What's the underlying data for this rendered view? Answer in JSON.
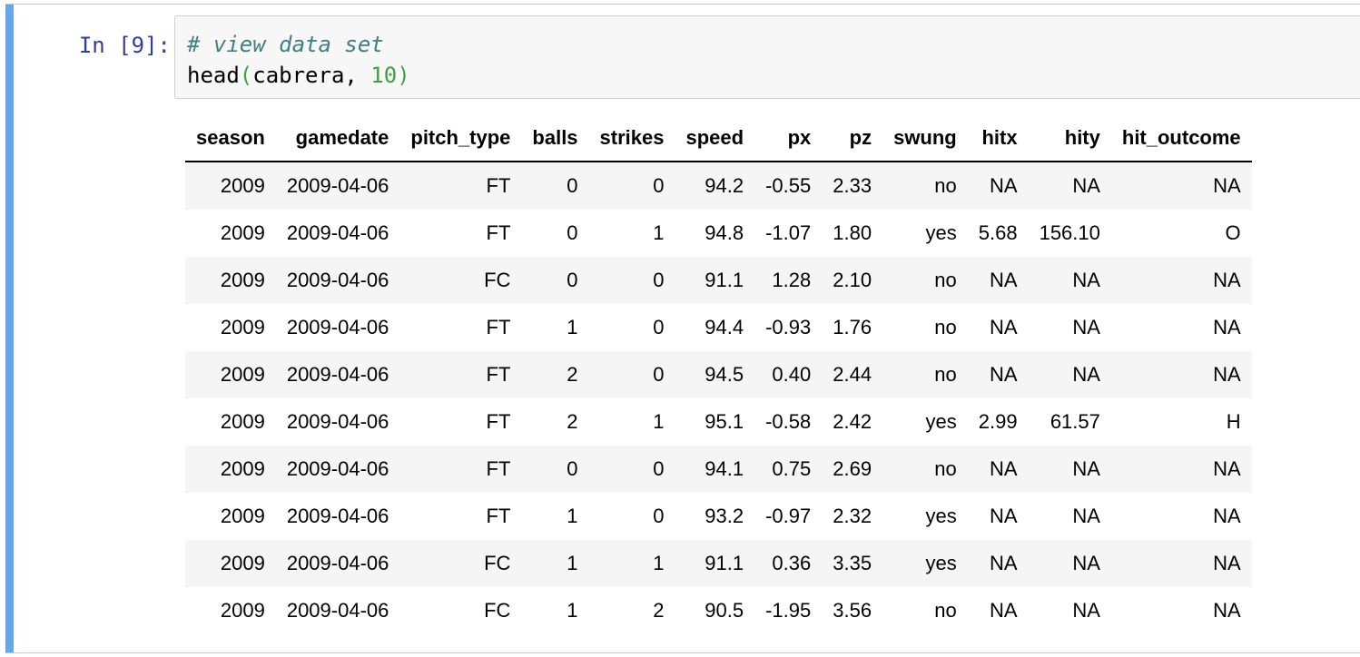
{
  "prompt": "In [9]:",
  "code": {
    "comment": "# view data set",
    "func": "head",
    "open_paren": "(",
    "args_text": "cabrera, ",
    "arg_num": "10",
    "close_paren": ")"
  },
  "table": {
    "columns": [
      "season",
      "gamedate",
      "pitch_type",
      "balls",
      "strikes",
      "speed",
      "px",
      "pz",
      "swung",
      "hitx",
      "hity",
      "hit_outcome"
    ],
    "rows": [
      [
        "2009",
        "2009-04-06",
        "FT",
        "0",
        "0",
        "94.2",
        "-0.55",
        "2.33",
        "no",
        "NA",
        "NA",
        "NA"
      ],
      [
        "2009",
        "2009-04-06",
        "FT",
        "0",
        "1",
        "94.8",
        "-1.07",
        "1.80",
        "yes",
        "5.68",
        "156.10",
        "O"
      ],
      [
        "2009",
        "2009-04-06",
        "FC",
        "0",
        "0",
        "91.1",
        "1.28",
        "2.10",
        "no",
        "NA",
        "NA",
        "NA"
      ],
      [
        "2009",
        "2009-04-06",
        "FT",
        "1",
        "0",
        "94.4",
        "-0.93",
        "1.76",
        "no",
        "NA",
        "NA",
        "NA"
      ],
      [
        "2009",
        "2009-04-06",
        "FT",
        "2",
        "0",
        "94.5",
        "0.40",
        "2.44",
        "no",
        "NA",
        "NA",
        "NA"
      ],
      [
        "2009",
        "2009-04-06",
        "FT",
        "2",
        "1",
        "95.1",
        "-0.58",
        "2.42",
        "yes",
        "2.99",
        "61.57",
        "H"
      ],
      [
        "2009",
        "2009-04-06",
        "FT",
        "0",
        "0",
        "94.1",
        "0.75",
        "2.69",
        "no",
        "NA",
        "NA",
        "NA"
      ],
      [
        "2009",
        "2009-04-06",
        "FT",
        "1",
        "0",
        "93.2",
        "-0.97",
        "2.32",
        "yes",
        "NA",
        "NA",
        "NA"
      ],
      [
        "2009",
        "2009-04-06",
        "FC",
        "1",
        "1",
        "91.1",
        "0.36",
        "3.35",
        "yes",
        "NA",
        "NA",
        "NA"
      ],
      [
        "2009",
        "2009-04-06",
        "FC",
        "1",
        "2",
        "90.5",
        "-1.95",
        "3.56",
        "no",
        "NA",
        "NA",
        "NA"
      ]
    ]
  },
  "colors": {
    "cell_selected_bar": "#66a7e8",
    "prompt": "#303f9f",
    "comment": "#408080",
    "number": "#3fa13f",
    "stripe": "#f5f5f5"
  }
}
